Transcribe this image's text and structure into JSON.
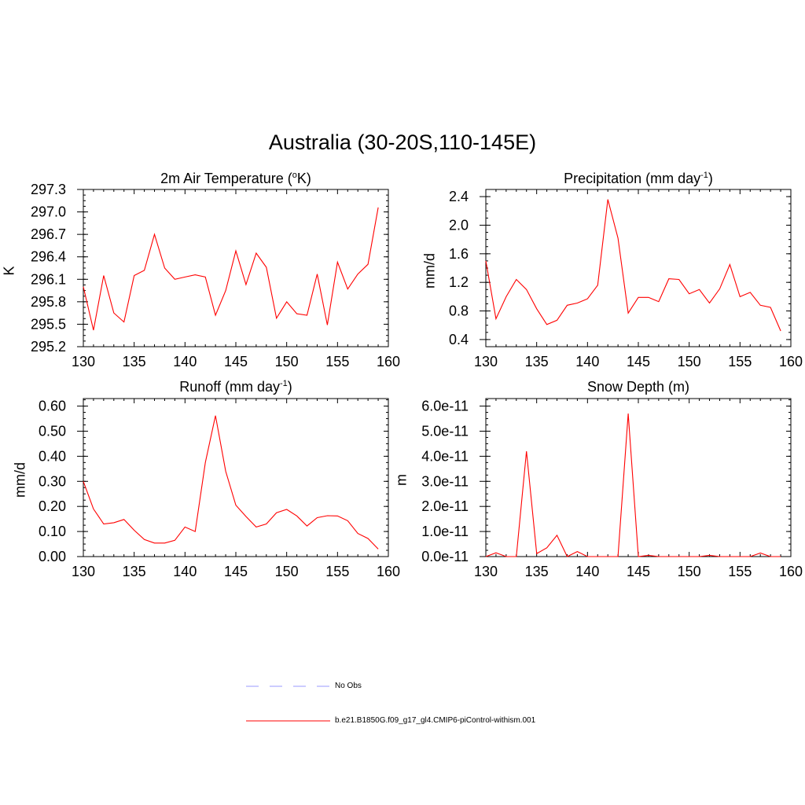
{
  "main_title": "Australia (30-20S,110-145E)",
  "legend": [
    {
      "label": "No Obs",
      "color": "#9999ff",
      "dash": true
    },
    {
      "label": "b.e21.B1850G.f09_g17_gl4.CMIP6-piControl-withism.001",
      "color": "#ff0000",
      "dash": false
    }
  ],
  "chart_data": [
    {
      "type": "line",
      "title": "2m Air Temperature (",
      "title_sup": "o",
      "title_post": "K)",
      "ylabel": "K",
      "xlim": [
        130,
        160
      ],
      "ylim": [
        295.2,
        297.3
      ],
      "xticks": [
        130,
        135,
        140,
        145,
        150,
        155,
        160
      ],
      "xtick_labels": [
        "130",
        "135",
        "140",
        "145",
        "150",
        "155",
        "160"
      ],
      "yticks": [
        295.2,
        295.5,
        295.8,
        296.1,
        296.4,
        296.7,
        297.0,
        297.3
      ],
      "ytick_labels": [
        "295.2",
        "295.5",
        "295.8",
        "296.1",
        "296.4",
        "296.7",
        "297.0",
        "297.3"
      ],
      "series": [
        {
          "color": "#ff0000",
          "x": [
            130,
            131,
            132,
            133,
            134,
            135,
            136,
            137,
            138,
            139,
            140,
            141,
            142,
            143,
            144,
            145,
            146,
            147,
            148,
            149,
            150,
            151,
            152,
            153,
            154,
            155,
            156,
            157,
            158,
            159
          ],
          "y": [
            296.0,
            295.42,
            296.15,
            295.65,
            295.53,
            296.15,
            296.22,
            296.7,
            296.25,
            296.1,
            296.13,
            296.16,
            296.13,
            295.62,
            295.95,
            296.48,
            296.03,
            296.45,
            296.26,
            295.58,
            295.8,
            295.64,
            295.62,
            296.17,
            295.49,
            296.33,
            295.97,
            296.17,
            296.3,
            297.06
          ]
        }
      ]
    },
    {
      "type": "line",
      "title": "Precipitation (mm day",
      "title_sup": "-1",
      "title_post": ")",
      "ylabel": "mm/d",
      "xlim": [
        130,
        160
      ],
      "ylim": [
        0.3,
        2.5
      ],
      "xticks": [
        130,
        135,
        140,
        145,
        150,
        155,
        160
      ],
      "xtick_labels": [
        "130",
        "135",
        "140",
        "145",
        "150",
        "155",
        "160"
      ],
      "yticks": [
        0.4,
        0.8,
        1.2,
        1.6,
        2.0,
        2.4
      ],
      "ytick_labels": [
        "0.4",
        "0.8",
        "1.2",
        "1.6",
        "2.0",
        "2.4"
      ],
      "series": [
        {
          "color": "#ff0000",
          "x": [
            130,
            131,
            132,
            133,
            134,
            135,
            136,
            137,
            138,
            139,
            140,
            141,
            142,
            143,
            144,
            145,
            146,
            147,
            148,
            149,
            150,
            151,
            152,
            153,
            154,
            155,
            156,
            157,
            158,
            159
          ],
          "y": [
            1.5,
            0.69,
            1.0,
            1.24,
            1.1,
            0.83,
            0.61,
            0.67,
            0.88,
            0.91,
            0.97,
            1.16,
            2.36,
            1.82,
            0.77,
            0.99,
            0.99,
            0.93,
            1.25,
            1.24,
            1.04,
            1.1,
            0.91,
            1.11,
            1.45,
            1.0,
            1.06,
            0.88,
            0.85,
            0.52
          ]
        }
      ]
    },
    {
      "type": "line",
      "title": "Runoff (mm day",
      "title_sup": "-1",
      "title_post": ")",
      "ylabel": "mm/d",
      "xlim": [
        130,
        160
      ],
      "ylim": [
        0.0,
        0.63
      ],
      "xticks": [
        130,
        135,
        140,
        145,
        150,
        155,
        160
      ],
      "xtick_labels": [
        "130",
        "135",
        "140",
        "145",
        "150",
        "155",
        "160"
      ],
      "yticks": [
        0.0,
        0.1,
        0.2,
        0.3,
        0.4,
        0.5,
        0.6
      ],
      "ytick_labels": [
        "0.00",
        "0.10",
        "0.20",
        "0.30",
        "0.40",
        "0.50",
        "0.60"
      ],
      "series": [
        {
          "color": "#ff0000",
          "x": [
            130,
            131,
            132,
            133,
            134,
            135,
            136,
            137,
            138,
            139,
            140,
            141,
            142,
            143,
            144,
            145,
            146,
            147,
            148,
            149,
            150,
            151,
            152,
            153,
            154,
            155,
            156,
            157,
            158,
            159
          ],
          "y": [
            0.3,
            0.19,
            0.13,
            0.135,
            0.148,
            0.105,
            0.068,
            0.054,
            0.054,
            0.065,
            0.118,
            0.1,
            0.375,
            0.562,
            0.34,
            0.205,
            0.16,
            0.118,
            0.13,
            0.175,
            0.188,
            0.162,
            0.122,
            0.155,
            0.163,
            0.162,
            0.143,
            0.092,
            0.072,
            0.03
          ]
        }
      ]
    },
    {
      "type": "line",
      "title": "Snow Depth (m)",
      "title_sup": "",
      "title_post": "",
      "ylabel": "m",
      "xlim": [
        130,
        160
      ],
      "ylim": [
        0.0,
        6.3e-11
      ],
      "xticks": [
        130,
        135,
        140,
        145,
        150,
        155,
        160
      ],
      "xtick_labels": [
        "130",
        "135",
        "140",
        "145",
        "150",
        "155",
        "160"
      ],
      "yticks": [
        0.0,
        1e-11,
        2e-11,
        3e-11,
        4e-11,
        5e-11,
        6e-11
      ],
      "ytick_labels": [
        "0.0e-11",
        "1.0e-11",
        "2.0e-11",
        "3.0e-11",
        "4.0e-11",
        "5.0e-11",
        "6.0e-11"
      ],
      "series": [
        {
          "color": "#ff0000",
          "x": [
            130,
            131,
            132,
            133,
            134,
            135,
            136,
            137,
            138,
            139,
            140,
            141,
            142,
            143,
            144,
            145,
            146,
            147,
            148,
            149,
            150,
            151,
            152,
            153,
            154,
            155,
            156,
            157,
            158,
            159
          ],
          "y": [
            0.0,
            1.5e-12,
            0.0,
            0.0,
            4.2e-11,
            1.2e-12,
            3.5e-12,
            8.5e-12,
            0.0,
            2e-12,
            0.0,
            0.0,
            0.0,
            0.0,
            5.7e-11,
            0.0,
            5e-13,
            0.0,
            0.0,
            0.0,
            0.0,
            0.0,
            5e-13,
            0.0,
            0.0,
            0.0,
            0.0,
            1.4e-12,
            0.0,
            0.0
          ]
        }
      ]
    }
  ]
}
